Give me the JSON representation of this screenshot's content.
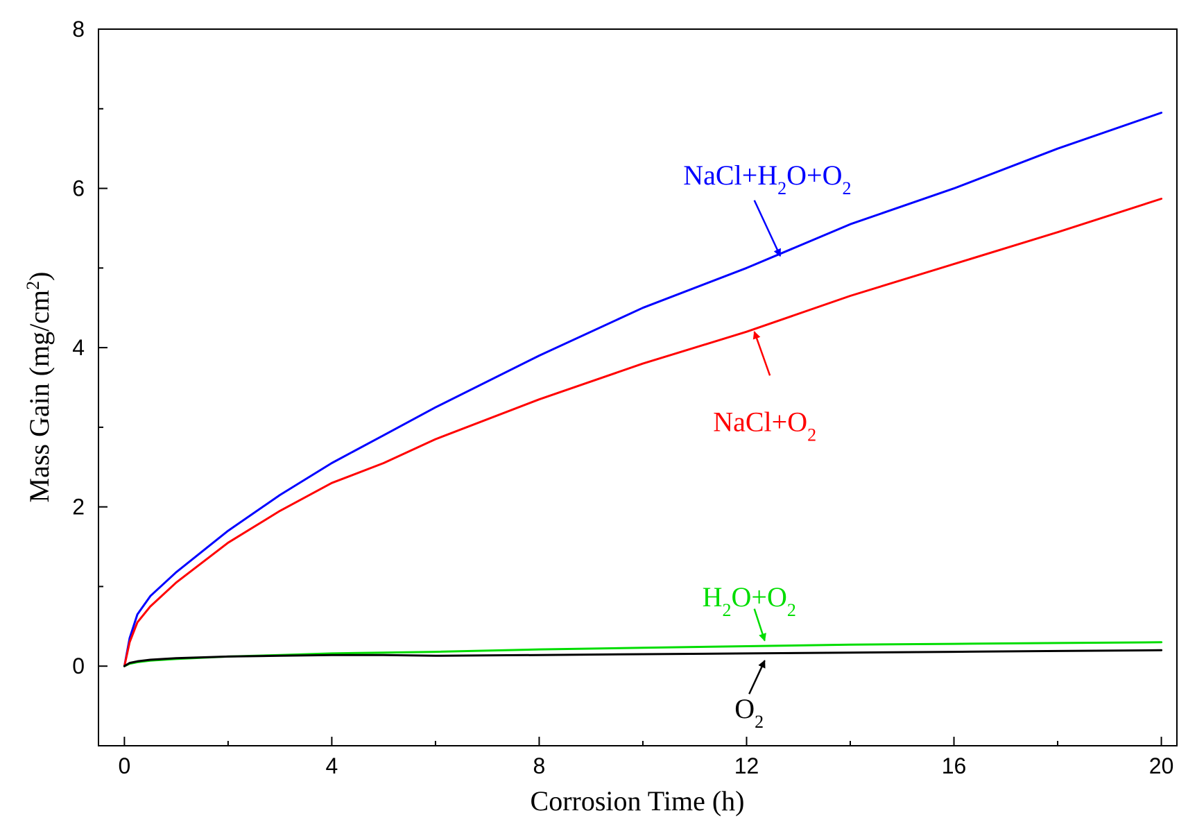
{
  "chart_data": {
    "type": "line",
    "title": "",
    "xlabel": "Corrosion Time (h)",
    "ylabel": "Mass Gain (mg/cm",
    "ylabel_sup": "2",
    "ylabel_end": ")",
    "xlim": [
      -0.5,
      20.3
    ],
    "ylim": [
      -1,
      8
    ],
    "xticks": [
      0,
      4,
      8,
      12,
      16,
      20
    ],
    "xtick_labels": [
      "0",
      "4",
      "8",
      "12",
      "16",
      "20"
    ],
    "yticks": [
      0,
      2,
      4,
      6,
      8
    ],
    "ytick_labels": [
      "0",
      "2",
      "4",
      "6",
      "8"
    ],
    "grid": false,
    "x": [
      0,
      0.1,
      0.25,
      0.5,
      1,
      2,
      3,
      4,
      5,
      6,
      8,
      10,
      12,
      14,
      16,
      18,
      20
    ],
    "series": [
      {
        "name": "NaCl+H2O+O2",
        "color": "#0000ff",
        "values": [
          0,
          0.35,
          0.65,
          0.88,
          1.18,
          1.7,
          2.15,
          2.55,
          2.9,
          3.25,
          3.9,
          4.5,
          5.0,
          5.55,
          6.0,
          6.5,
          6.95
        ]
      },
      {
        "name": "NaCl+O2",
        "color": "#ff0000",
        "values": [
          0,
          0.3,
          0.55,
          0.75,
          1.05,
          1.55,
          1.95,
          2.3,
          2.55,
          2.85,
          3.35,
          3.8,
          4.2,
          4.65,
          5.05,
          5.45,
          5.87
        ]
      },
      {
        "name": "H2O+O2",
        "color": "#00dd00",
        "values": [
          0,
          0.03,
          0.05,
          0.07,
          0.09,
          0.12,
          0.14,
          0.16,
          0.17,
          0.18,
          0.21,
          0.23,
          0.25,
          0.27,
          0.28,
          0.29,
          0.3
        ]
      },
      {
        "name": "O2",
        "color": "#000000",
        "values": [
          0,
          0.04,
          0.06,
          0.08,
          0.1,
          0.12,
          0.13,
          0.14,
          0.14,
          0.13,
          0.14,
          0.15,
          0.16,
          0.17,
          0.18,
          0.19,
          0.2
        ]
      }
    ],
    "annotations": [
      {
        "series": "NaCl+H2O+O2",
        "text_parts": [
          [
            "NaCl+H",
            "normal"
          ],
          [
            "2",
            "sub"
          ],
          [
            "O+O",
            "normal"
          ],
          [
            "2",
            "sub"
          ]
        ],
        "color": "#0000ff",
        "text_at": [
          12.4,
          6.05
        ],
        "arrow_from": [
          12.15,
          5.85
        ],
        "arrow_to": [
          12.65,
          5.15
        ]
      },
      {
        "series": "NaCl+O2",
        "text_parts": [
          [
            "NaCl+O",
            "normal"
          ],
          [
            "2",
            "sub"
          ]
        ],
        "color": "#ff0000",
        "text_at": [
          12.35,
          2.95
        ],
        "arrow_from": [
          12.45,
          3.65
        ],
        "arrow_to": [
          12.15,
          4.2
        ]
      },
      {
        "series": "H2O+O2",
        "text_parts": [
          [
            "H",
            "normal"
          ],
          [
            "2",
            "sub"
          ],
          [
            "O+O",
            "normal"
          ],
          [
            "2",
            "sub"
          ]
        ],
        "color": "#00dd00",
        "text_at": [
          12.05,
          0.75
        ],
        "arrow_from": [
          12.15,
          0.72
        ],
        "arrow_to": [
          12.35,
          0.32
        ]
      },
      {
        "series": "O2",
        "text_parts": [
          [
            "O",
            "normal"
          ],
          [
            "2",
            "sub"
          ]
        ],
        "color": "#000000",
        "text_at": [
          12.05,
          -0.65
        ],
        "arrow_from": [
          12.05,
          -0.35
        ],
        "arrow_to": [
          12.35,
          0.07
        ]
      }
    ]
  }
}
